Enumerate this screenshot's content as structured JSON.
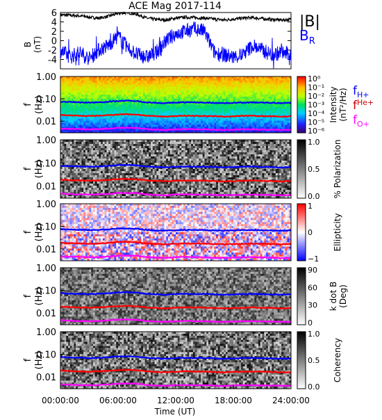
{
  "title": "ACE Mag 2017-114",
  "x_axis": {
    "label": "Time (UT)",
    "ticks": [
      "00:00:00",
      "06:00:00",
      "12:00:00",
      "18:00:00",
      "24:00:00"
    ],
    "range_hours": [
      0,
      24
    ]
  },
  "colors": {
    "B_total": "#000000",
    "B_R": "#0000ff",
    "f_H": "#0000ff",
    "f_He": "#ff0000",
    "f_O": "#ff00ff"
  },
  "legend": {
    "B_total": "|B|",
    "B_R_main": "B",
    "B_R_sub": "R",
    "fH_main": "f",
    "fH_sub": "H+",
    "fHe_main": "f",
    "fHe_sub": "He+",
    "fO_main": "f",
    "fO_sub": "O+"
  },
  "chart_data": [
    {
      "type": "line",
      "panel": "magnetic-field",
      "ylabel_line1": "B",
      "ylabel_line2": "(nT)",
      "ylim": [
        -6,
        6
      ],
      "yticks": [
        "6",
        "4",
        "2",
        "0",
        "-2",
        "-4"
      ],
      "series": [
        {
          "name": "|B|",
          "x": [
            0,
            1,
            2,
            3,
            4,
            5,
            6,
            7,
            8,
            9,
            10,
            11,
            12,
            13,
            14,
            15,
            16,
            17,
            18,
            19,
            20,
            21,
            22,
            23,
            24
          ],
          "values": [
            5.5,
            5.4,
            5.3,
            5.0,
            4.8,
            5.2,
            5.8,
            6.0,
            5.6,
            4.8,
            4.5,
            4.4,
            4.8,
            5.0,
            4.9,
            4.8,
            4.6,
            4.4,
            4.6,
            4.8,
            4.9,
            4.7,
            4.5,
            4.4,
            4.5
          ]
        },
        {
          "name": "B_R",
          "x": [
            0,
            1,
            2,
            3,
            4,
            5,
            6,
            7,
            8,
            9,
            10,
            11,
            12,
            13,
            14,
            15,
            16,
            17,
            18,
            19,
            20,
            21,
            22,
            23,
            24
          ],
          "values": [
            -2.0,
            -3.5,
            -2.5,
            -3.8,
            -2.0,
            -1.0,
            1.0,
            -1.5,
            -3.0,
            -3.5,
            -2.5,
            0.0,
            1.5,
            2.0,
            2.5,
            2.0,
            -2.5,
            -3.0,
            -3.5,
            -3.0,
            -1.0,
            -2.0,
            -3.0,
            -2.5,
            -3.0
          ]
        }
      ]
    },
    {
      "type": "heatmap",
      "panel": "intensity",
      "ylabel_line1": "f",
      "ylabel_line2": "(Hz)",
      "yticks": [
        "1.00",
        "0.10",
        "0.01"
      ],
      "ylim_hz": [
        0.003,
        1.0
      ],
      "yscale": "log",
      "colorbar_label_line1": "Intensity",
      "colorbar_label_line2": "(nT²/Hz)",
      "colorbar_ticks": [
        "10⁰",
        "10⁻¹",
        "10⁻²",
        "10⁻³",
        "10⁻⁴",
        "10⁻⁵",
        "10⁻⁶"
      ],
      "colormap": "rainbow"
    },
    {
      "type": "heatmap",
      "panel": "polarization",
      "ylabel_line1": "f",
      "ylabel_line2": "(Hz)",
      "yticks": [
        "1.00",
        "0.10",
        "0.01"
      ],
      "colorbar_label": "% Polarization",
      "colorbar_ticks": [
        "1.0",
        "0.5",
        "0.0"
      ],
      "colormap": "gray"
    },
    {
      "type": "heatmap",
      "panel": "ellipticity",
      "ylabel_line1": "f",
      "ylabel_line2": "(Hz)",
      "yticks": [
        "1.00",
        "0.10",
        "0.01"
      ],
      "colorbar_label": "Ellipticity",
      "colorbar_ticks": [
        "1",
        "0",
        "−1"
      ],
      "colormap": "bwr"
    },
    {
      "type": "heatmap",
      "panel": "k-dot-b",
      "ylabel_line1": "f",
      "ylabel_line2": "(Hz)",
      "yticks": [
        "1.00",
        "0.10",
        "0.01"
      ],
      "colorbar_label_line1": "k dot B",
      "colorbar_label_line2": "(Deg)",
      "colorbar_ticks": [
        "90",
        "60",
        "30",
        "0"
      ],
      "colormap": "gray"
    },
    {
      "type": "heatmap",
      "panel": "coherency",
      "ylabel_line1": "f",
      "ylabel_line2": "(Hz)",
      "yticks": [
        "1.00",
        "0.10",
        "0.01"
      ],
      "colorbar_label": "Coherency",
      "colorbar_ticks": [
        "1.0",
        "0.5",
        "0.0"
      ],
      "colormap": "gray"
    }
  ],
  "gyrofrequency_lines_hz": {
    "f_H": [
      0.075,
      0.072,
      0.07,
      0.068,
      0.07,
      0.074,
      0.08,
      0.082,
      0.078,
      0.07,
      0.066,
      0.064,
      0.068,
      0.07,
      0.069,
      0.068,
      0.066,
      0.064,
      0.066,
      0.068,
      0.069,
      0.067,
      0.066,
      0.064,
      0.066
    ],
    "f_He": [
      0.019,
      0.018,
      0.0175,
      0.017,
      0.0175,
      0.0185,
      0.02,
      0.0205,
      0.0195,
      0.0175,
      0.0165,
      0.016,
      0.017,
      0.0175,
      0.0173,
      0.017,
      0.0165,
      0.016,
      0.0165,
      0.017,
      0.0173,
      0.0168,
      0.0165,
      0.016,
      0.0165
    ],
    "f_O": [
      0.0047,
      0.0045,
      0.0044,
      0.0043,
      0.0044,
      0.0046,
      0.005,
      0.0051,
      0.0049,
      0.0044,
      0.0041,
      0.004,
      0.0043,
      0.0044,
      0.0043,
      0.0043,
      0.0041,
      0.004,
      0.0041,
      0.0043,
      0.0043,
      0.0042,
      0.0041,
      0.004,
      0.0041
    ]
  }
}
